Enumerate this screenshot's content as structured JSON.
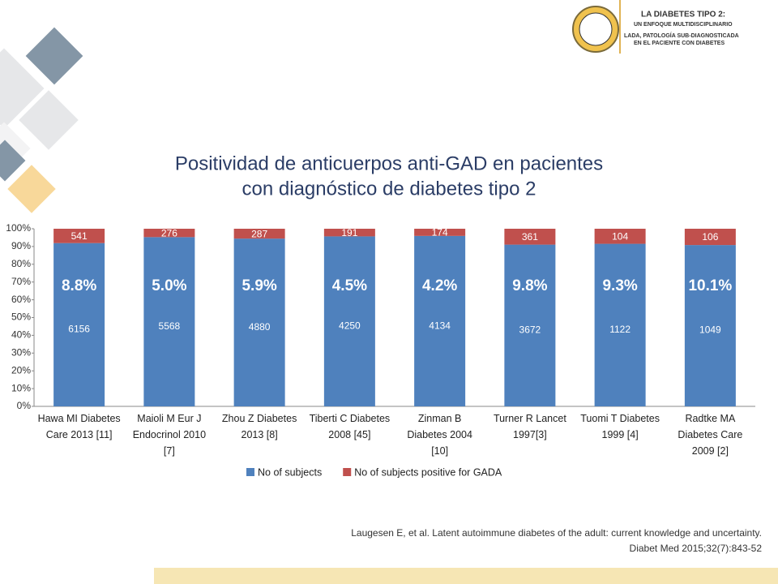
{
  "header": {
    "lines": [
      "LA DIABETES TIPO 2:",
      "UN ENFOQUE MULTIDISCIPLINARIO",
      "LADA, PATOLOGÍA SUB-DIAGNOSTICADA",
      "EN EL PACIENTE CON DIABETES"
    ]
  },
  "citation": [
    "Laugesen E, et al. Latent autoimmune diabetes of the adult: current knowledge and uncertainty.",
    "Diabet Med 2015;32(7):843-52"
  ],
  "chart_data": {
    "type": "bar",
    "stacking": "percent",
    "title": [
      "Positividad de anticuerpos anti-GAD en pacientes",
      "con diagnóstico de diabetes tipo 2"
    ],
    "categories": [
      "Hawa MI Diabetes\nCare 2013 [11]",
      "Maioli M Eur J\nEndocrinol 2010\n[7]",
      "Zhou Z Diabetes\n2013 [8]",
      "Tiberti C Diabetes\n2008 [45]",
      "Zinman B\nDiabetes 2004\n[10]",
      "Turner R Lancet\n1997[3]",
      "Tuomi T Diabetes\n1999 [4]",
      "Radtke MA\nDiabetes Care\n2009 [2]"
    ],
    "series": [
      {
        "name": "No of subjects",
        "color": "#4f81bd",
        "values": [
          6156,
          5568,
          4880,
          4250,
          4134,
          3672,
          1122,
          1049
        ]
      },
      {
        "name": "No of subjects positive for GADA",
        "color": "#c0504d",
        "values": [
          541,
          276,
          287,
          191,
          174,
          361,
          104,
          106
        ]
      }
    ],
    "annotations": [
      "8.8%",
      "5.0%",
      "5.9%",
      "4.5%",
      "4.2%",
      "9.8%",
      "9.3%",
      "10.1%"
    ],
    "ylim": [
      0,
      100
    ],
    "yticks": [
      {
        "value": 0,
        "label": "0%"
      },
      {
        "value": 10,
        "label": "10%"
      },
      {
        "value": 20,
        "label": "20%"
      },
      {
        "value": 30,
        "label": "30%"
      },
      {
        "value": 40,
        "label": "40%"
      },
      {
        "value": 50,
        "label": "50%"
      },
      {
        "value": 60,
        "label": "60%"
      },
      {
        "value": 70,
        "label": "70%"
      },
      {
        "value": 80,
        "label": "80%"
      },
      {
        "value": 90,
        "label": "90%"
      },
      {
        "value": 100,
        "label": "100%"
      }
    ],
    "legend": "bottom"
  }
}
